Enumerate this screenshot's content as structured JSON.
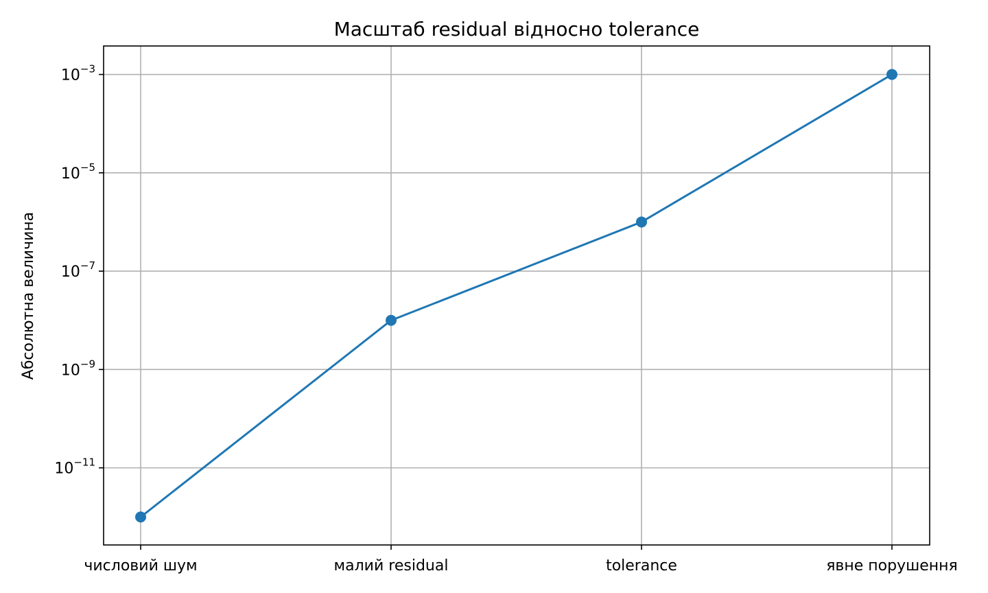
{
  "chart_data": {
    "type": "line",
    "title": "Масштаб residual відносно tolerance",
    "xlabel": "",
    "ylabel": "Абсолютна величина",
    "yscale": "log",
    "categories": [
      "числовий шум",
      "малий residual",
      "tolerance",
      "явне порушення"
    ],
    "series": [
      {
        "values": [
          1e-12,
          1e-08,
          1e-06,
          0.001
        ],
        "color": "#1f77b4",
        "marker": "circle"
      }
    ],
    "yticks": [
      {
        "value": 1e-11,
        "base": "10",
        "exp": "−11"
      },
      {
        "value": 1e-09,
        "base": "10",
        "exp": "−9"
      },
      {
        "value": 1e-07,
        "base": "10",
        "exp": "−7"
      },
      {
        "value": 1e-05,
        "base": "10",
        "exp": "−5"
      },
      {
        "value": 0.001,
        "base": "10",
        "exp": "−3"
      }
    ],
    "ylim": [
      2.7e-13,
      0.0038
    ],
    "grid": true,
    "legend": "none"
  }
}
